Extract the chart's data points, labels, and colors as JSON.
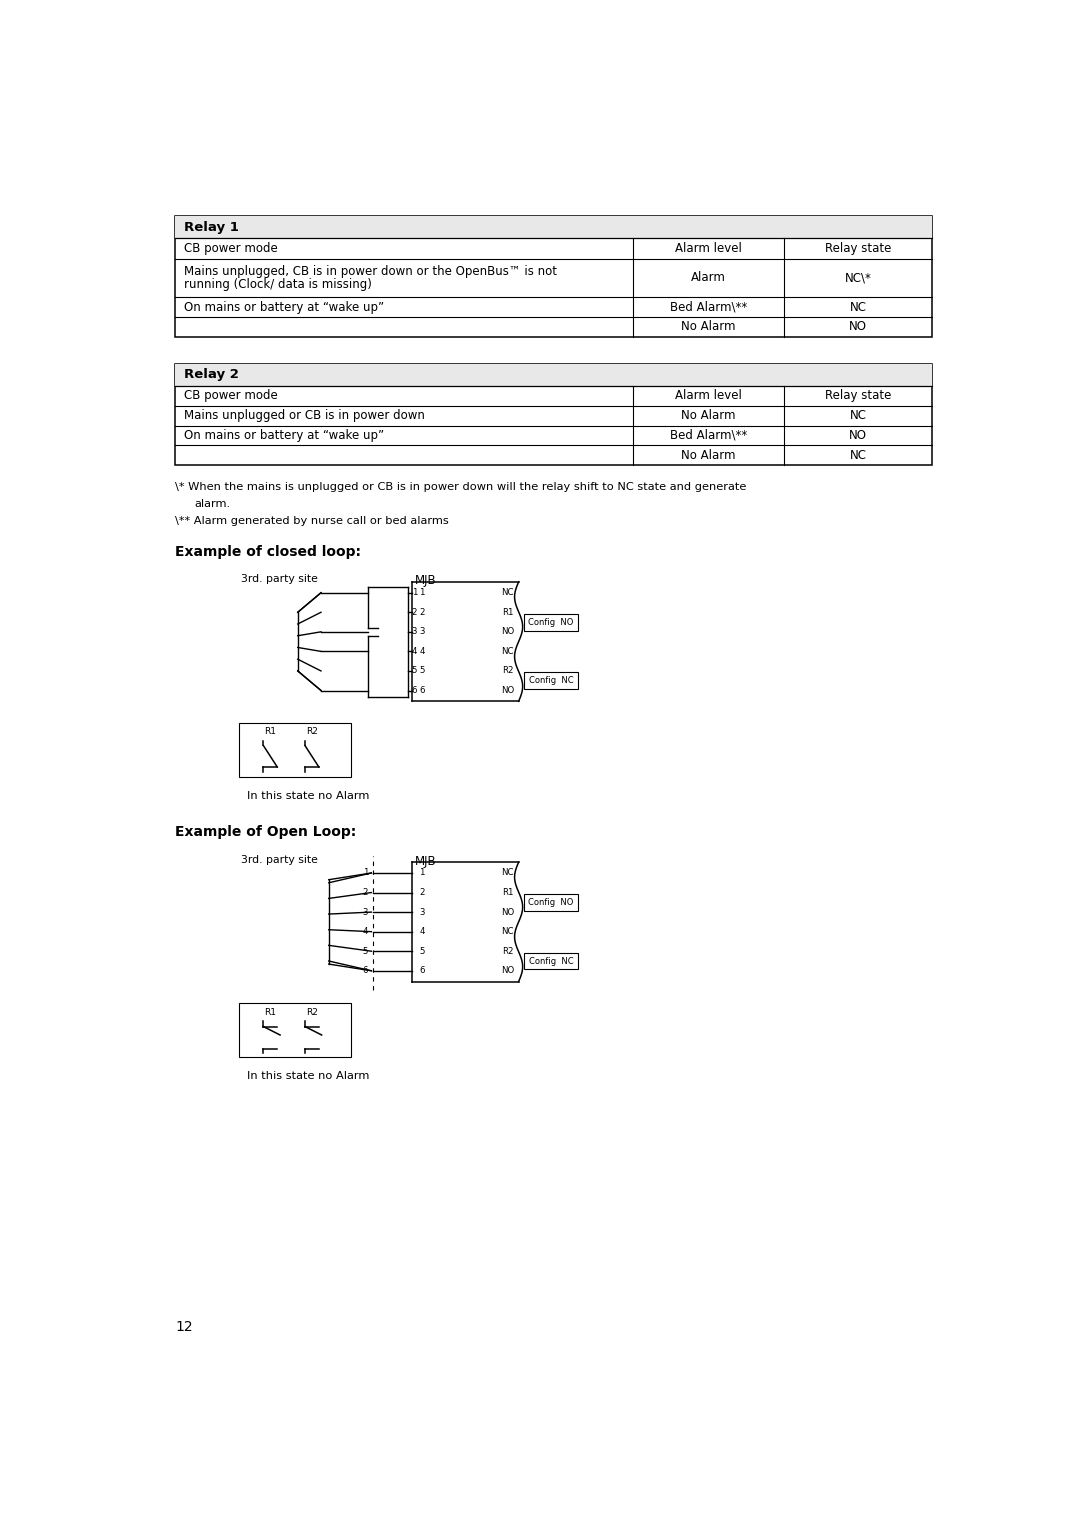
{
  "bg_color": "#ffffff",
  "page_number": "12",
  "relay1_header": "Relay 1",
  "relay2_header": "Relay 2",
  "col_headers": [
    "CB power mode",
    "Alarm level",
    "Relay state"
  ],
  "relay1_rows": [
    [
      "Mains unplugged, CB is in power down or the OpenBus™ is not\nrunning (Clock/ data is missing)",
      "Alarm",
      "NC\\*"
    ],
    [
      "On mains or battery at “wake up”",
      "Bed Alarm\\**",
      "NC"
    ],
    [
      "",
      "No Alarm",
      "NO"
    ]
  ],
  "relay2_rows": [
    [
      "Mains unplugged or CB is in power down",
      "No Alarm",
      "NC"
    ],
    [
      "On mains or battery at “wake up”",
      "Bed Alarm\\**",
      "NO"
    ],
    [
      "",
      "No Alarm",
      "NC"
    ]
  ],
  "footnote1": "\\* When the mains is unplugged or CB is in power down will the relay shift to NC state and generate",
  "footnote2": "   alarm.",
  "footnote3": "\\** Alarm generated by nurse call or bed alarms",
  "closed_loop_title": "Example of closed loop:",
  "open_loop_title": "Example of Open Loop:",
  "state_label": "In this state no Alarm",
  "third_party": "3rd. party site",
  "mjb_label": "MJB"
}
